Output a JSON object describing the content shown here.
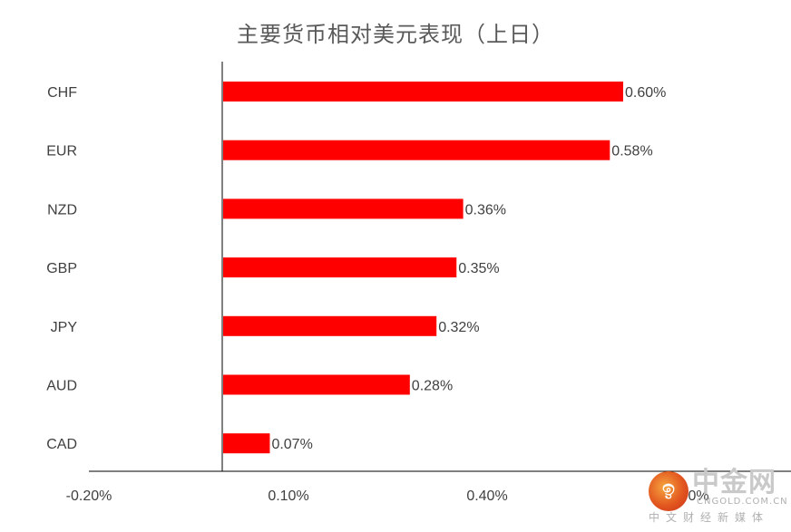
{
  "chart_data": {
    "type": "bar",
    "orientation": "horizontal",
    "title": "主要货币相对美元表现（上日）",
    "categories": [
      "CHF",
      "EUR",
      "NZD",
      "GBP",
      "JPY",
      "AUD",
      "CAD"
    ],
    "values": [
      0.6,
      0.58,
      0.36,
      0.35,
      0.32,
      0.28,
      0.07
    ],
    "value_labels": [
      "0.60%",
      "0.58%",
      "0.36%",
      "0.35%",
      "0.32%",
      "0.28%",
      "0.07%"
    ],
    "x_tick_labels": [
      "-0.20%",
      "0.10%",
      "0.40%",
      "0%"
    ],
    "xlim": [
      -0.2,
      0.65
    ],
    "xlabel": "",
    "ylabel": "",
    "grid": false,
    "legend": "none",
    "bar_color": "#ff0000"
  },
  "watermark": {
    "brand": "中金网",
    "domain": "CNGOLD.COM.CN",
    "slogan": "中文财经新媒体"
  },
  "colors": {
    "title": "#595959",
    "labels": "#404040",
    "axis": "#000000",
    "bar": "#ff0000"
  }
}
